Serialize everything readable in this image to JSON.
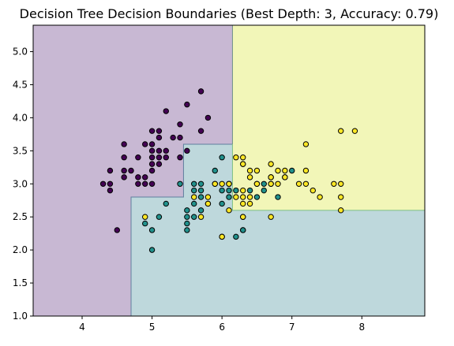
{
  "chart_data": {
    "type": "scatter",
    "title": "Decision Tree Decision Boundaries (Best Depth: 3, Accuracy: 0.79)",
    "xlabel": "",
    "ylabel": "",
    "xlim": [
      3.3,
      8.9
    ],
    "ylim": [
      1.0,
      5.4
    ],
    "x_ticks": [
      4,
      5,
      6,
      7,
      8
    ],
    "y_ticks": [
      1.0,
      1.5,
      2.0,
      2.5,
      3.0,
      3.5,
      4.0,
      4.5,
      5.0
    ],
    "grid": false,
    "legend": "none",
    "region_colors": {
      "0": "#c8b8d3",
      "1": "#bed8dc",
      "2": "#f2f6b8"
    },
    "boundary_colors": {
      "0-1": "#5f7e9e",
      "1-2": "#7cbf86"
    },
    "point_colors": {
      "0": "#440154",
      "1": "#21918c",
      "2": "#fde725"
    },
    "regions": [
      {
        "class": 0,
        "x": [
          3.3,
          8.9
        ],
        "y": [
          1.0,
          5.4
        ]
      },
      {
        "class": 1,
        "x": [
          4.7,
          8.9
        ],
        "y": [
          1.0,
          2.8
        ]
      },
      {
        "class": 1,
        "x": [
          5.45,
          8.9
        ],
        "y": [
          2.8,
          3.6
        ]
      },
      {
        "class": 2,
        "x": [
          6.15,
          8.9
        ],
        "y": [
          2.6,
          5.4
        ]
      }
    ],
    "boundaries": [
      {
        "pair": "0-1",
        "points": [
          [
            4.7,
            1.0
          ],
          [
            4.7,
            2.8
          ],
          [
            5.45,
            2.8
          ],
          [
            5.45,
            3.6
          ],
          [
            6.15,
            3.6
          ]
        ]
      },
      {
        "pair": "1-2",
        "points": [
          [
            6.15,
            3.6
          ],
          [
            6.15,
            2.6
          ],
          [
            8.9,
            2.6
          ]
        ]
      },
      {
        "pair": "0-2",
        "points": [
          [
            6.15,
            3.6
          ],
          [
            6.15,
            5.4
          ]
        ]
      }
    ],
    "series": [
      {
        "class": 0,
        "points": [
          [
            4.3,
            3.0
          ],
          [
            4.4,
            2.9
          ],
          [
            4.4,
            3.0
          ],
          [
            4.4,
            3.2
          ],
          [
            4.5,
            2.3
          ],
          [
            4.6,
            3.1
          ],
          [
            4.6,
            3.2
          ],
          [
            4.6,
            3.4
          ],
          [
            4.6,
            3.6
          ],
          [
            4.7,
            3.2
          ],
          [
            4.8,
            3.0
          ],
          [
            4.8,
            3.1
          ],
          [
            4.8,
            3.4
          ],
          [
            4.9,
            3.0
          ],
          [
            4.9,
            3.1
          ],
          [
            4.9,
            3.6
          ],
          [
            5.0,
            3.0
          ],
          [
            5.0,
            3.2
          ],
          [
            5.0,
            3.3
          ],
          [
            5.0,
            3.4
          ],
          [
            5.0,
            3.5
          ],
          [
            5.0,
            3.6
          ],
          [
            5.1,
            3.3
          ],
          [
            5.1,
            3.4
          ],
          [
            5.1,
            3.5
          ],
          [
            5.1,
            3.7
          ],
          [
            5.1,
            3.8
          ],
          [
            5.2,
            3.4
          ],
          [
            5.2,
            3.5
          ],
          [
            5.2,
            4.1
          ],
          [
            5.3,
            3.7
          ],
          [
            5.4,
            3.4
          ],
          [
            5.4,
            3.7
          ],
          [
            5.4,
            3.9
          ],
          [
            5.5,
            3.5
          ],
          [
            5.5,
            4.2
          ],
          [
            5.7,
            3.8
          ],
          [
            5.7,
            4.4
          ],
          [
            5.8,
            4.0
          ],
          [
            5.0,
            3.8
          ]
        ]
      },
      {
        "class": 1,
        "points": [
          [
            4.9,
            2.4
          ],
          [
            5.0,
            2.0
          ],
          [
            5.0,
            2.3
          ],
          [
            5.1,
            2.5
          ],
          [
            5.2,
            2.7
          ],
          [
            5.5,
            2.3
          ],
          [
            5.5,
            2.4
          ],
          [
            5.5,
            2.5
          ],
          [
            5.5,
            2.6
          ],
          [
            5.6,
            2.5
          ],
          [
            5.6,
            2.7
          ],
          [
            5.6,
            2.9
          ],
          [
            5.6,
            3.0
          ],
          [
            5.7,
            2.6
          ],
          [
            5.7,
            2.8
          ],
          [
            5.7,
            2.9
          ],
          [
            5.7,
            3.0
          ],
          [
            5.8,
            2.7
          ],
          [
            5.9,
            3.0
          ],
          [
            5.9,
            3.2
          ],
          [
            6.0,
            2.2
          ],
          [
            6.0,
            2.7
          ],
          [
            6.0,
            2.9
          ],
          [
            6.0,
            3.4
          ],
          [
            6.1,
            2.8
          ],
          [
            6.1,
            2.9
          ],
          [
            6.1,
            3.0
          ],
          [
            6.2,
            2.2
          ],
          [
            6.2,
            2.9
          ],
          [
            6.3,
            2.3
          ],
          [
            6.3,
            2.5
          ],
          [
            6.3,
            3.3
          ],
          [
            6.4,
            2.9
          ],
          [
            6.5,
            2.8
          ],
          [
            6.6,
            2.9
          ],
          [
            6.6,
            3.0
          ],
          [
            6.7,
            3.0
          ],
          [
            6.7,
            3.1
          ],
          [
            6.8,
            2.8
          ],
          [
            6.9,
            3.1
          ],
          [
            7.0,
            3.2
          ],
          [
            5.4,
            3.0
          ],
          [
            6.1,
            3.0
          ],
          [
            6.3,
            2.3
          ]
        ]
      },
      {
        "class": 2,
        "points": [
          [
            4.9,
            2.5
          ],
          [
            5.6,
            2.8
          ],
          [
            5.7,
            2.5
          ],
          [
            5.8,
            2.7
          ],
          [
            5.8,
            2.8
          ],
          [
            6.0,
            2.2
          ],
          [
            6.0,
            3.0
          ],
          [
            6.1,
            2.6
          ],
          [
            6.1,
            3.0
          ],
          [
            6.2,
            2.8
          ],
          [
            6.2,
            3.4
          ],
          [
            6.3,
            2.5
          ],
          [
            6.3,
            2.7
          ],
          [
            6.3,
            2.8
          ],
          [
            6.3,
            2.9
          ],
          [
            6.3,
            3.3
          ],
          [
            6.3,
            3.4
          ],
          [
            6.4,
            2.7
          ],
          [
            6.4,
            2.8
          ],
          [
            6.4,
            3.1
          ],
          [
            6.4,
            3.2
          ],
          [
            6.5,
            3.0
          ],
          [
            6.5,
            3.2
          ],
          [
            6.7,
            2.5
          ],
          [
            6.7,
            3.0
          ],
          [
            6.7,
            3.1
          ],
          [
            6.7,
            3.3
          ],
          [
            6.8,
            3.0
          ],
          [
            6.8,
            3.2
          ],
          [
            6.9,
            3.1
          ],
          [
            6.9,
            3.2
          ],
          [
            7.1,
            3.0
          ],
          [
            7.2,
            3.0
          ],
          [
            7.2,
            3.2
          ],
          [
            7.2,
            3.6
          ],
          [
            7.3,
            2.9
          ],
          [
            7.4,
            2.8
          ],
          [
            7.6,
            3.0
          ],
          [
            7.7,
            2.6
          ],
          [
            7.7,
            2.8
          ],
          [
            7.7,
            3.0
          ],
          [
            7.7,
            3.8
          ],
          [
            7.9,
            3.8
          ],
          [
            5.9,
            3.0
          ],
          [
            6.5,
            3.0
          ]
        ]
      }
    ]
  }
}
